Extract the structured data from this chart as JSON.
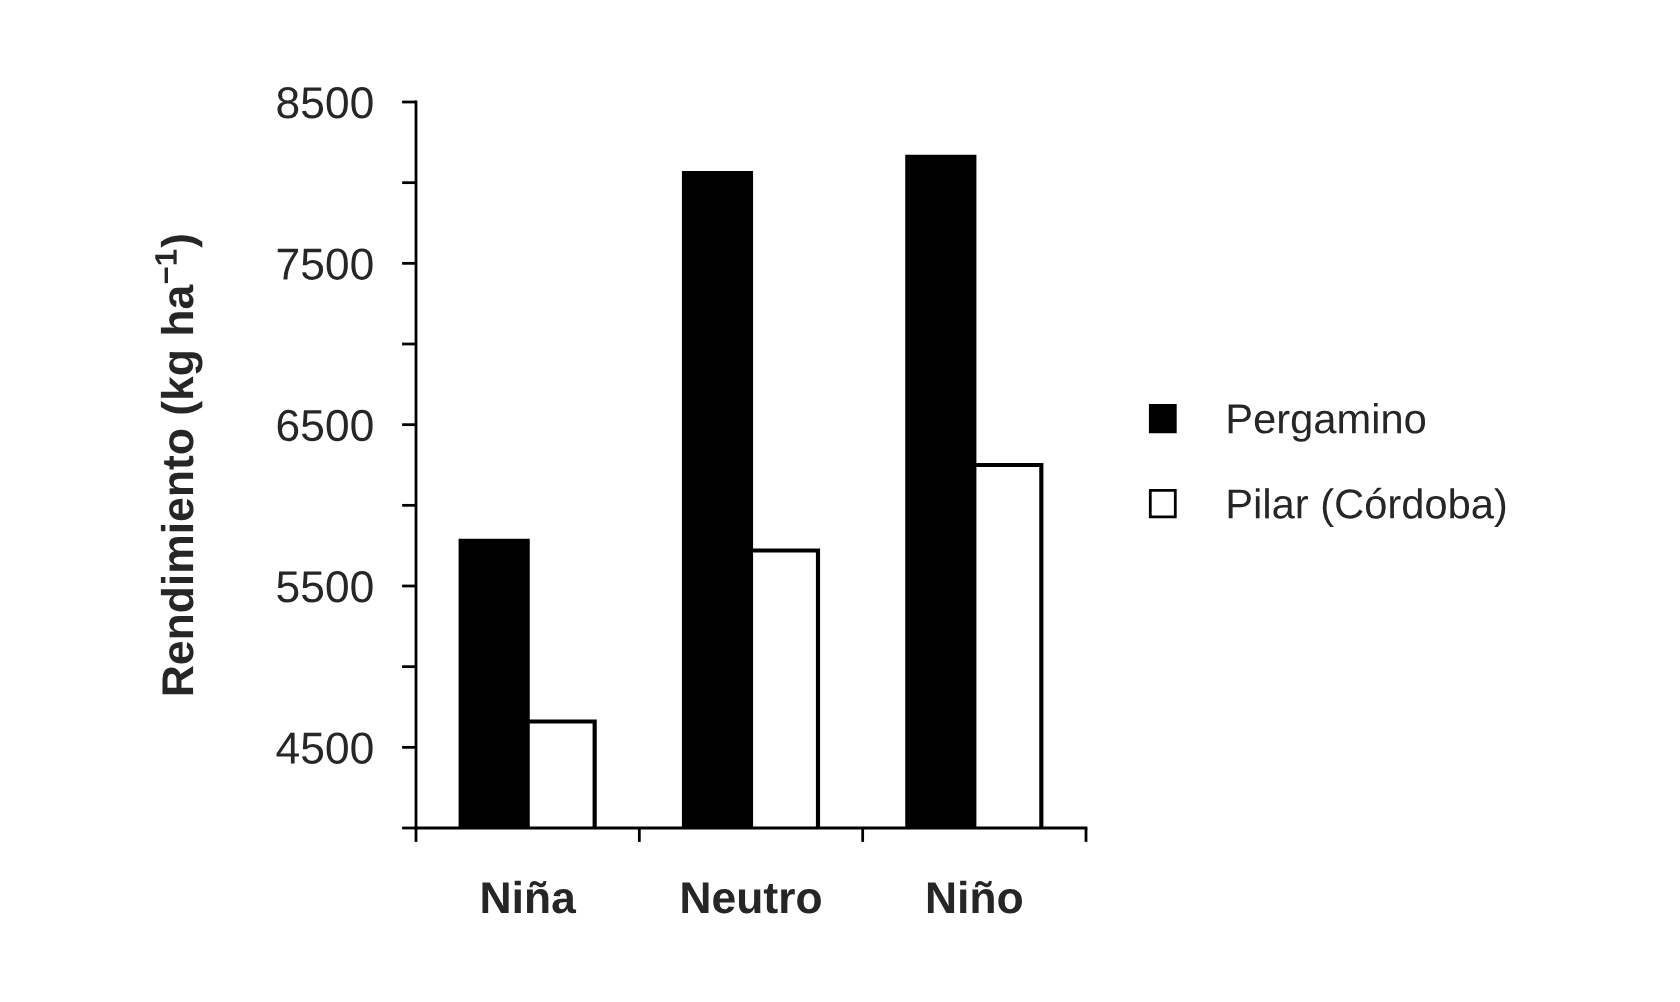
{
  "chart_data": {
    "type": "bar",
    "ylabel": "Rendimiento (kg ha$^{−1}$)",
    "categories": [
      "Niña",
      "Neutro",
      "Niño"
    ],
    "series": [
      {
        "name": "Pergamino",
        "color": "#000000",
        "values": [
          5780,
          8060,
          8160
        ]
      },
      {
        "name": "Pilar (Córdoba)",
        "color": "#ffffff",
        "values": [
          4660,
          5720,
          6250
        ]
      }
    ],
    "ylim": [
      4000,
      8500
    ],
    "yticks": [
      {
        "value": 4000,
        "label": null
      },
      4500,
      {
        "value": 5000,
        "label": null
      },
      5500,
      {
        "value": 6000,
        "label": null
      },
      6500,
      {
        "value": 7000,
        "label": null
      },
      7500,
      {
        "value": 8000,
        "label": null
      },
      8500
    ],
    "grid": false,
    "legend": "right"
  }
}
